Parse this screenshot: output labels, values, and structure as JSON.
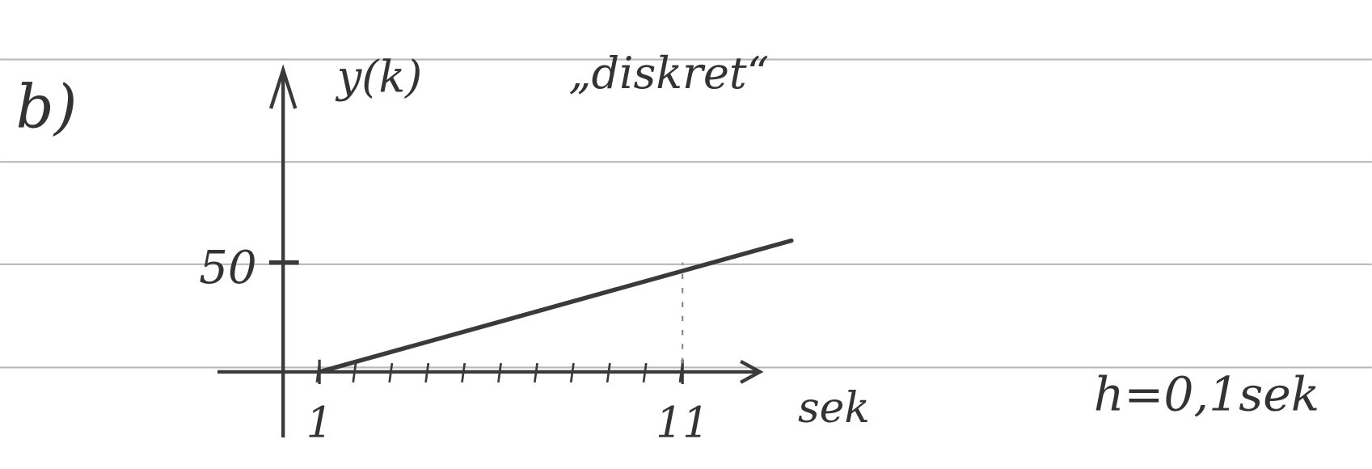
{
  "chart_data": {
    "type": "line",
    "panel_label": "b)",
    "title": "„diskret“",
    "y_label": "y(k)",
    "x_label": "sek",
    "annotation": "h=0,1sek",
    "x": [
      1,
      14
    ],
    "series": [
      {
        "values": [
          0,
          60
        ],
        "color": "#3a3a3a"
      }
    ],
    "xlim": [
      -2,
      14
    ],
    "ylim": [
      -30,
      138
    ],
    "xticks": [
      1,
      11
    ],
    "yticks": [
      50
    ],
    "grid": false
  }
}
